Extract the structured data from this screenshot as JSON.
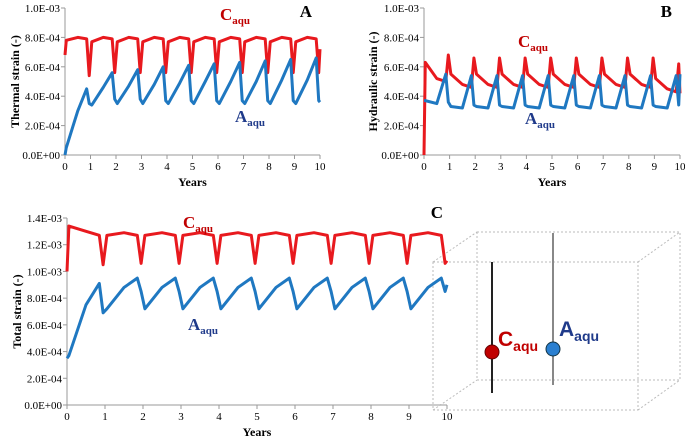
{
  "chart_data": [
    {
      "type": "line",
      "panel_label": "A",
      "x_label": "Years",
      "y_label": "Thermal strain (-)",
      "x": [
        0,
        0.05,
        0.5,
        0.85,
        0.95,
        1.05,
        1.5,
        1.85,
        1.95,
        2.05,
        2.5,
        2.85,
        2.95,
        3.05,
        3.5,
        3.85,
        3.95,
        4.05,
        4.5,
        4.85,
        4.95,
        5.05,
        5.5,
        5.85,
        5.95,
        6.05,
        6.5,
        6.85,
        6.95,
        7.05,
        7.5,
        7.85,
        7.95,
        8.05,
        8.5,
        8.85,
        8.95,
        9.05,
        9.5,
        9.85,
        9.95,
        10
      ],
      "xlim": [
        0,
        10
      ],
      "xticks": [
        0,
        1,
        2,
        3,
        4,
        5,
        6,
        7,
        8,
        9,
        10
      ],
      "ylim": [
        0,
        0.001
      ],
      "yticks": [
        {
          "value": 0,
          "label": "0.0E+00"
        },
        {
          "value": 0.0002,
          "label": "2.0E-04"
        },
        {
          "value": 0.0004,
          "label": "4.0E-04"
        },
        {
          "value": 0.0006,
          "label": "6.0E-04"
        },
        {
          "value": 0.0008,
          "label": "8.0E-04"
        },
        {
          "value": 0.001,
          "label": "1.0E-03"
        }
      ],
      "series": [
        {
          "name": "C",
          "subscript": "aqu",
          "color": "#e8191e",
          "label_color": "#c00000",
          "values": [
            0.00068,
            0.00078,
            0.0008,
            0.00079,
            0.00054,
            0.00077,
            0.0008,
            0.00079,
            0.00056,
            0.00077,
            0.0008,
            0.00079,
            0.00056,
            0.00077,
            0.0008,
            0.00079,
            0.00056,
            0.00077,
            0.0008,
            0.00079,
            0.00056,
            0.00077,
            0.0008,
            0.00079,
            0.00056,
            0.00077,
            0.0008,
            0.00079,
            0.00056,
            0.00077,
            0.0008,
            0.00079,
            0.00056,
            0.00077,
            0.0008,
            0.00079,
            0.00056,
            0.00077,
            0.0008,
            0.00079,
            0.00056,
            0.00072
          ]
        },
        {
          "name": "A",
          "subscript": "aqu",
          "color": "#1f78c1",
          "label_color": "#1f3a8a",
          "values": [
            0,
            5e-05,
            0.0003,
            0.00045,
            0.00035,
            0.00034,
            0.00046,
            0.00056,
            0.00038,
            0.00035,
            0.00047,
            0.00058,
            0.00038,
            0.00035,
            0.00048,
            0.0006,
            0.00037,
            0.00035,
            0.00049,
            0.00061,
            0.00037,
            0.00035,
            0.0005,
            0.00062,
            0.00037,
            0.00035,
            0.0005,
            0.00063,
            0.00037,
            0.00035,
            0.0005,
            0.00064,
            0.00037,
            0.00035,
            0.00051,
            0.00065,
            0.00037,
            0.00035,
            0.00051,
            0.00066,
            0.00037,
            0.00036
          ]
        }
      ]
    },
    {
      "type": "line",
      "panel_label": "B",
      "x_label": "Years",
      "y_label": "Hydraulic strain (-)",
      "x": [
        0,
        0.05,
        0.5,
        0.85,
        0.95,
        1.05,
        1.5,
        1.85,
        1.95,
        2.05,
        2.5,
        2.85,
        2.95,
        3.05,
        3.5,
        3.85,
        3.95,
        4.05,
        4.5,
        4.85,
        4.95,
        5.05,
        5.5,
        5.85,
        5.95,
        6.05,
        6.5,
        6.85,
        6.95,
        7.05,
        7.5,
        7.85,
        7.95,
        8.05,
        8.5,
        8.85,
        8.95,
        9.05,
        9.5,
        9.85,
        9.95,
        10
      ],
      "xlim": [
        0,
        10
      ],
      "xticks": [
        0,
        1,
        2,
        3,
        4,
        5,
        6,
        7,
        8,
        9,
        10
      ],
      "ylim": [
        0,
        0.001
      ],
      "yticks": [
        {
          "value": 0,
          "label": "0.0E+00"
        },
        {
          "value": 0.0002,
          "label": "2.0E-04"
        },
        {
          "value": 0.0004,
          "label": "4.0E-04"
        },
        {
          "value": 0.0006,
          "label": "6.0E-04"
        },
        {
          "value": 0.0008,
          "label": "8.0E-04"
        },
        {
          "value": 0.001,
          "label": "1.0E-03"
        }
      ],
      "series": [
        {
          "name": "C",
          "subscript": "aqu",
          "color": "#e8191e",
          "label_color": "#c00000",
          "values": [
            0,
            0.00063,
            0.00052,
            0.0005,
            0.00068,
            0.00055,
            0.00048,
            0.00046,
            0.00066,
            0.00055,
            0.00048,
            0.00046,
            0.00066,
            0.00055,
            0.00048,
            0.00046,
            0.00066,
            0.00055,
            0.00048,
            0.00046,
            0.00066,
            0.00055,
            0.00048,
            0.00046,
            0.00066,
            0.00055,
            0.00048,
            0.00046,
            0.00066,
            0.00055,
            0.00048,
            0.00046,
            0.00066,
            0.00055,
            0.00048,
            0.00046,
            0.00066,
            0.00052,
            0.00045,
            0.00043,
            0.00062,
            0.00042
          ]
        },
        {
          "name": "A",
          "subscript": "aqu",
          "color": "#1f78c1",
          "label_color": "#1f3a8a",
          "values": [
            0.00037,
            0.00037,
            0.00035,
            0.00055,
            0.00036,
            0.00033,
            0.00032,
            0.00054,
            0.00034,
            0.00033,
            0.00032,
            0.00054,
            0.00034,
            0.00033,
            0.00032,
            0.00054,
            0.00034,
            0.00033,
            0.00032,
            0.00054,
            0.00034,
            0.00033,
            0.00032,
            0.00054,
            0.00034,
            0.00033,
            0.00032,
            0.00054,
            0.00034,
            0.00033,
            0.00032,
            0.00054,
            0.00034,
            0.00033,
            0.00032,
            0.00054,
            0.00034,
            0.00033,
            0.00032,
            0.00054,
            0.00034,
            0.00055
          ]
        }
      ]
    },
    {
      "type": "line",
      "panel_label": "C",
      "x_label": "Years",
      "y_label": "Total strain  (-)",
      "x": [
        0,
        0.05,
        0.5,
        0.85,
        0.95,
        1.05,
        1.5,
        1.85,
        1.95,
        2.05,
        2.5,
        2.85,
        2.95,
        3.05,
        3.5,
        3.85,
        3.95,
        4.05,
        4.5,
        4.85,
        4.95,
        5.05,
        5.5,
        5.85,
        5.95,
        6.05,
        6.5,
        6.85,
        6.95,
        7.05,
        7.5,
        7.85,
        7.95,
        8.05,
        8.5,
        8.85,
        8.95,
        9.05,
        9.5,
        9.85,
        9.95,
        10
      ],
      "xlim": [
        0,
        10
      ],
      "xticks": [
        0,
        1,
        2,
        3,
        4,
        5,
        6,
        7,
        8,
        9,
        10
      ],
      "ylim": [
        0,
        0.0014
      ],
      "yticks": [
        {
          "value": 0,
          "label": "0.0E+00"
        },
        {
          "value": 0.0002,
          "label": "2.0E-04"
        },
        {
          "value": 0.0004,
          "label": "4.0E-04"
        },
        {
          "value": 0.0006,
          "label": "6.0E-04"
        },
        {
          "value": 0.0008,
          "label": "8.0E-04"
        },
        {
          "value": 0.001,
          "label": "1.0E-03"
        },
        {
          "value": 0.0012,
          "label": "1.2E-03"
        },
        {
          "value": 0.0014,
          "label": "1.4E-03"
        }
      ],
      "series": [
        {
          "name": "C",
          "subscript": "aqu",
          "color": "#e8191e",
          "label_color": "#c00000",
          "values": [
            0.001,
            0.00134,
            0.0013,
            0.00127,
            0.00105,
            0.00127,
            0.00129,
            0.00127,
            0.00106,
            0.00127,
            0.00129,
            0.00127,
            0.00106,
            0.00127,
            0.00129,
            0.00127,
            0.00106,
            0.00127,
            0.00129,
            0.00127,
            0.00106,
            0.00127,
            0.00129,
            0.00127,
            0.00106,
            0.00127,
            0.00129,
            0.00127,
            0.00106,
            0.00127,
            0.00129,
            0.00127,
            0.00106,
            0.00127,
            0.00129,
            0.00127,
            0.00106,
            0.00127,
            0.00129,
            0.00127,
            0.00106,
            0.00108
          ]
        },
        {
          "name": "A",
          "subscript": "aqu",
          "color": "#1f78c1",
          "label_color": "#1f3a8a",
          "values": [
            0.00035,
            0.00037,
            0.00075,
            0.00091,
            0.00069,
            0.00072,
            0.00088,
            0.00095,
            0.00085,
            0.00072,
            0.00088,
            0.00095,
            0.00085,
            0.00072,
            0.00088,
            0.00095,
            0.00085,
            0.00072,
            0.00088,
            0.00095,
            0.00085,
            0.00072,
            0.00088,
            0.00095,
            0.00085,
            0.00072,
            0.00088,
            0.00095,
            0.00085,
            0.00072,
            0.00088,
            0.00095,
            0.00085,
            0.00072,
            0.00088,
            0.00095,
            0.00085,
            0.00072,
            0.00088,
            0.00095,
            0.00085,
            0.0009
          ]
        }
      ]
    }
  ],
  "diagram": {
    "labels": [
      {
        "name": "C",
        "subscript": "aqu"
      },
      {
        "name": "A",
        "subscript": "aqu"
      }
    ]
  }
}
